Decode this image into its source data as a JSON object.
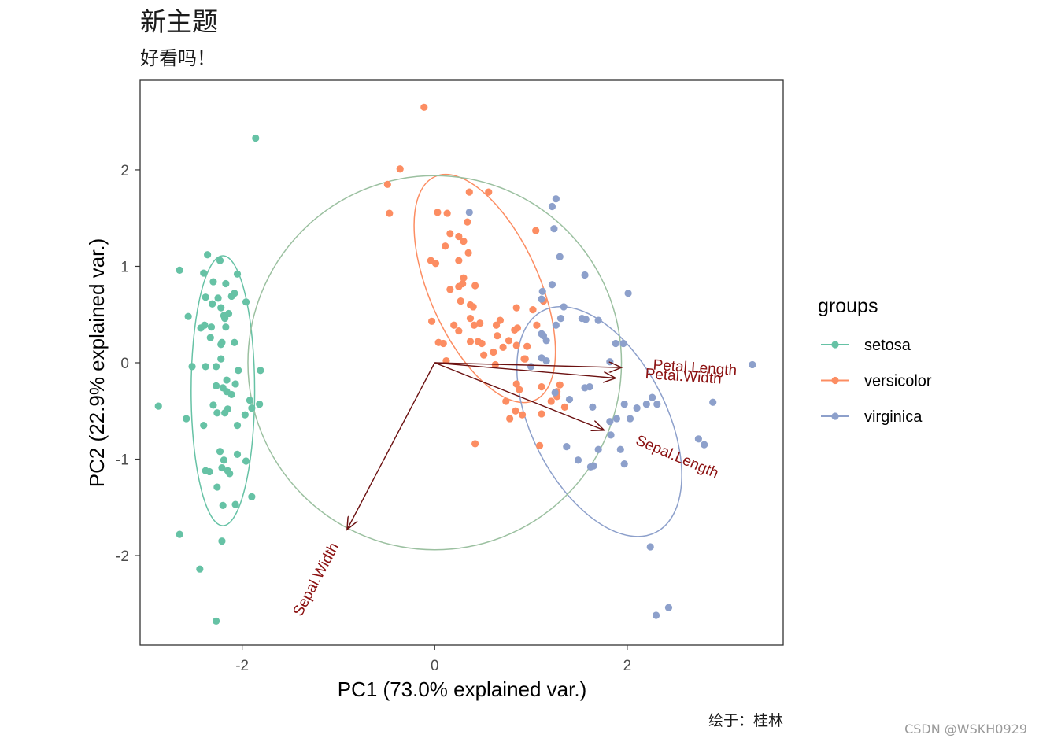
{
  "chart_data": {
    "type": "scatter",
    "title": "新主题",
    "subtitle": "好看吗！",
    "xlabel": "PC1 (73.0% explained var.)",
    "ylabel": "PC2 (22.9% explained var.)",
    "caption": "绘于：桂林",
    "xlim": [
      -3.06,
      3.62
    ],
    "ylim": [
      -2.93,
      2.93
    ],
    "x_ticks": [
      -2,
      0,
      2
    ],
    "x_tick_labels": [
      "-2",
      "0",
      "2"
    ],
    "y_ticks": [
      -2,
      -1,
      0,
      1,
      2
    ],
    "y_tick_labels": [
      "-2",
      "-1",
      "0",
      "1",
      "2"
    ],
    "grid": false,
    "legend": {
      "title": "groups",
      "position": "right"
    },
    "series": [
      {
        "name": "setosa",
        "color": "#66c2a5",
        "points": [
          [
            -2.36,
            1.12
          ],
          [
            -2.23,
            1.06
          ],
          [
            -2.65,
            0.96
          ],
          [
            -2.4,
            0.93
          ],
          [
            -2.05,
            0.92
          ],
          [
            -2.3,
            0.84
          ],
          [
            -2.17,
            0.82
          ],
          [
            -2.08,
            0.72
          ],
          [
            -2.38,
            0.68
          ],
          [
            -2.25,
            0.67
          ],
          [
            -2.11,
            0.69
          ],
          [
            -1.96,
            0.63
          ],
          [
            -2.31,
            0.61
          ],
          [
            -2.22,
            0.57
          ],
          [
            -2.19,
            0.49
          ],
          [
            -2.14,
            0.51
          ],
          [
            -2.18,
            0.46
          ],
          [
            -2.56,
            0.48
          ],
          [
            -2.39,
            0.39
          ],
          [
            -2.32,
            0.37
          ],
          [
            -2.17,
            0.37
          ],
          [
            -2.43,
            0.36
          ],
          [
            -2.33,
            0.26
          ],
          [
            -2.21,
            0.21
          ],
          [
            -2.08,
            0.21
          ],
          [
            -2.22,
            0.19
          ],
          [
            -2.22,
            0.04
          ],
          [
            -2.38,
            -0.04
          ],
          [
            -2.52,
            -0.04
          ],
          [
            -2.27,
            -0.04
          ],
          [
            -2.04,
            -0.08
          ],
          [
            -1.81,
            -0.08
          ],
          [
            -2.16,
            -0.18
          ],
          [
            -2.07,
            -0.22
          ],
          [
            -2.27,
            -0.24
          ],
          [
            -2.2,
            -0.26
          ],
          [
            -2.16,
            -0.3
          ],
          [
            -2.11,
            -0.33
          ],
          [
            -1.92,
            -0.39
          ],
          [
            -2.87,
            -0.45
          ],
          [
            -2.3,
            -0.44
          ],
          [
            -2.15,
            -0.48
          ],
          [
            -2.18,
            -0.52
          ],
          [
            -2.26,
            -0.52
          ],
          [
            -1.9,
            -0.47
          ],
          [
            -1.82,
            -0.43
          ],
          [
            -1.97,
            -0.54
          ],
          [
            -2.58,
            -0.58
          ],
          [
            -2.4,
            -0.65
          ],
          [
            -2.05,
            -0.65
          ],
          [
            -2.23,
            -0.92
          ],
          [
            -2.05,
            -0.95
          ],
          [
            -2.19,
            -1.01
          ],
          [
            -1.96,
            -1.02
          ],
          [
            -2.21,
            -1.09
          ],
          [
            -2.15,
            -1.12
          ],
          [
            -2.38,
            -1.12
          ],
          [
            -2.34,
            -1.13
          ],
          [
            -2.13,
            -1.15
          ],
          [
            -2.26,
            -1.29
          ],
          [
            -1.9,
            -1.39
          ],
          [
            -2.2,
            -1.48
          ],
          [
            -2.07,
            -1.47
          ],
          [
            -2.65,
            -1.78
          ],
          [
            -2.21,
            -1.85
          ],
          [
            -2.44,
            -2.14
          ],
          [
            -2.27,
            -2.68
          ],
          [
            -1.86,
            2.33
          ]
        ]
      },
      {
        "name": "versicolor",
        "color": "#fc8d62",
        "points": [
          [
            -0.11,
            2.65
          ],
          [
            -0.36,
            2.01
          ],
          [
            -0.49,
            1.85
          ],
          [
            0.36,
            1.77
          ],
          [
            0.56,
            1.77
          ],
          [
            -0.47,
            1.55
          ],
          [
            0.03,
            1.56
          ],
          [
            0.13,
            1.55
          ],
          [
            0.34,
            1.46
          ],
          [
            1.05,
            1.37
          ],
          [
            0.16,
            1.34
          ],
          [
            0.25,
            1.31
          ],
          [
            0.3,
            1.26
          ],
          [
            0.11,
            1.21
          ],
          [
            0.35,
            1.14
          ],
          [
            -0.04,
            1.06
          ],
          [
            0.01,
            1.03
          ],
          [
            0.25,
            1.06
          ],
          [
            0.3,
            0.88
          ],
          [
            0.29,
            0.82
          ],
          [
            0.42,
            0.8
          ],
          [
            0.25,
            0.79
          ],
          [
            0.16,
            0.76
          ],
          [
            1.13,
            0.64
          ],
          [
            0.27,
            0.64
          ],
          [
            0.37,
            0.6
          ],
          [
            0.4,
            0.58
          ],
          [
            0.85,
            0.57
          ],
          [
            1.02,
            0.55
          ],
          [
            0.37,
            0.46
          ],
          [
            0.41,
            0.39
          ],
          [
            0.68,
            0.44
          ],
          [
            1.06,
            0.39
          ],
          [
            0.64,
            0.39
          ],
          [
            0.86,
            0.36
          ],
          [
            -0.03,
            0.43
          ],
          [
            0.2,
            0.39
          ],
          [
            0.47,
            0.41
          ],
          [
            0.25,
            0.33
          ],
          [
            0.83,
            0.34
          ],
          [
            0.65,
            0.28
          ],
          [
            0.09,
            0.2
          ],
          [
            0.37,
            0.22
          ],
          [
            0.49,
            0.2
          ],
          [
            0.71,
            0.16
          ],
          [
            0.96,
            0.17
          ],
          [
            0.04,
            0.21
          ],
          [
            0.85,
            0.18
          ],
          [
            0.45,
            0.22
          ],
          [
            0.77,
            0.23
          ],
          [
            0.61,
            0.11
          ],
          [
            0.51,
            0.08
          ],
          [
            0.93,
            0.04
          ],
          [
            0.12,
            0.02
          ],
          [
            0.63,
            -0.02
          ],
          [
            0.85,
            -0.22
          ],
          [
            0.88,
            -0.28
          ],
          [
            1.27,
            -0.35
          ],
          [
            0.74,
            -0.4
          ],
          [
            0.84,
            -0.5
          ],
          [
            0.91,
            -0.54
          ],
          [
            1.11,
            -0.53
          ],
          [
            0.42,
            -0.84
          ],
          [
            1.09,
            -0.86
          ],
          [
            0.78,
            -0.58
          ],
          [
            1.35,
            -0.46
          ],
          [
            1.21,
            -0.4
          ],
          [
            1.27,
            -0.3
          ],
          [
            1.3,
            -0.23
          ],
          [
            0.94,
            0.04
          ],
          [
            1.11,
            -0.25
          ]
        ]
      },
      {
        "name": "virginica",
        "color": "#8da0cb",
        "points": [
          [
            1.26,
            1.7
          ],
          [
            0.36,
            1.56
          ],
          [
            1.22,
            1.62
          ],
          [
            1.24,
            1.39
          ],
          [
            1.3,
            1.1
          ],
          [
            1.56,
            0.91
          ],
          [
            1.22,
            0.81
          ],
          [
            1.12,
            0.74
          ],
          [
            1.11,
            0.66
          ],
          [
            1.34,
            0.58
          ],
          [
            1.57,
            0.45
          ],
          [
            1.7,
            0.44
          ],
          [
            1.31,
            0.46
          ],
          [
            2.01,
            0.72
          ],
          [
            1.13,
            0.28
          ],
          [
            1.11,
            0.3
          ],
          [
            1.26,
            0.39
          ],
          [
            1.53,
            0.46
          ],
          [
            1.16,
            0.23
          ],
          [
            1.88,
            0.2
          ],
          [
            1.96,
            0.2
          ],
          [
            1.11,
            0.05
          ],
          [
            1.16,
            0.02
          ],
          [
            1.82,
            0.01
          ],
          [
            1.0,
            -0.04
          ],
          [
            1.61,
            -0.25
          ],
          [
            1.56,
            -0.26
          ],
          [
            1.25,
            -0.31
          ],
          [
            1.4,
            -0.38
          ],
          [
            1.64,
            -0.46
          ],
          [
            1.97,
            -0.43
          ],
          [
            2.2,
            -0.43
          ],
          [
            2.26,
            -0.36
          ],
          [
            2.1,
            -0.47
          ],
          [
            2.31,
            -0.43
          ],
          [
            2.89,
            -0.41
          ],
          [
            1.89,
            -0.58
          ],
          [
            1.82,
            -0.61
          ],
          [
            2.03,
            -0.58
          ],
          [
            3.3,
            -0.02
          ],
          [
            2.74,
            -0.79
          ],
          [
            2.8,
            -0.85
          ],
          [
            1.93,
            -0.9
          ],
          [
            1.83,
            -0.75
          ],
          [
            1.7,
            -0.9
          ],
          [
            1.97,
            -1.05
          ],
          [
            1.37,
            -0.87
          ],
          [
            1.49,
            -1.01
          ],
          [
            1.62,
            -1.08
          ],
          [
            2.24,
            -1.91
          ],
          [
            2.43,
            -2.54
          ],
          [
            2.3,
            -2.62
          ],
          [
            1.65,
            -1.07
          ]
        ]
      }
    ],
    "ellipses": [
      {
        "group": "setosa",
        "color": "#66c2a5",
        "cx": -2.2,
        "cy": -0.29,
        "rx": 0.33,
        "ry": 1.4,
        "angle_deg": 0
      },
      {
        "group": "versicolor",
        "color": "#fc8d62",
        "cx": 0.52,
        "cy": 0.77,
        "rx": 0.57,
        "ry": 1.27,
        "angle_deg": 24
      },
      {
        "group": "virginica",
        "color": "#8da0cb",
        "cx": 1.71,
        "cy": -0.61,
        "rx": 0.7,
        "ry": 1.29,
        "angle_deg": 27
      },
      {
        "group": "circle",
        "color": "#9bc0a0",
        "cx": 0.0,
        "cy": 0.0,
        "rx": 1.94,
        "ry": 1.94,
        "angle_deg": 0
      }
    ],
    "loadings": [
      {
        "name": "Sepal.Length",
        "x": 1.76,
        "y": -0.7,
        "label_x": 2.5,
        "label_y": -1.02,
        "label_angle_deg": 23
      },
      {
        "name": "Sepal.Width",
        "x": -0.91,
        "y": -1.73,
        "label_x": -1.19,
        "label_y": -2.27,
        "label_angle_deg": -62
      },
      {
        "name": "Petal.Length",
        "x": 1.94,
        "y": -0.05,
        "label_x": 2.7,
        "label_y": -0.1,
        "label_angle_deg": 4
      },
      {
        "name": "Petal.Width",
        "x": 1.88,
        "y": -0.16,
        "label_x": 2.58,
        "label_y": -0.19,
        "label_angle_deg": 4
      }
    ],
    "arrow_color": "#6b1010",
    "label_color": "#8b1010"
  },
  "watermark": "CSDN @WSKH0929"
}
